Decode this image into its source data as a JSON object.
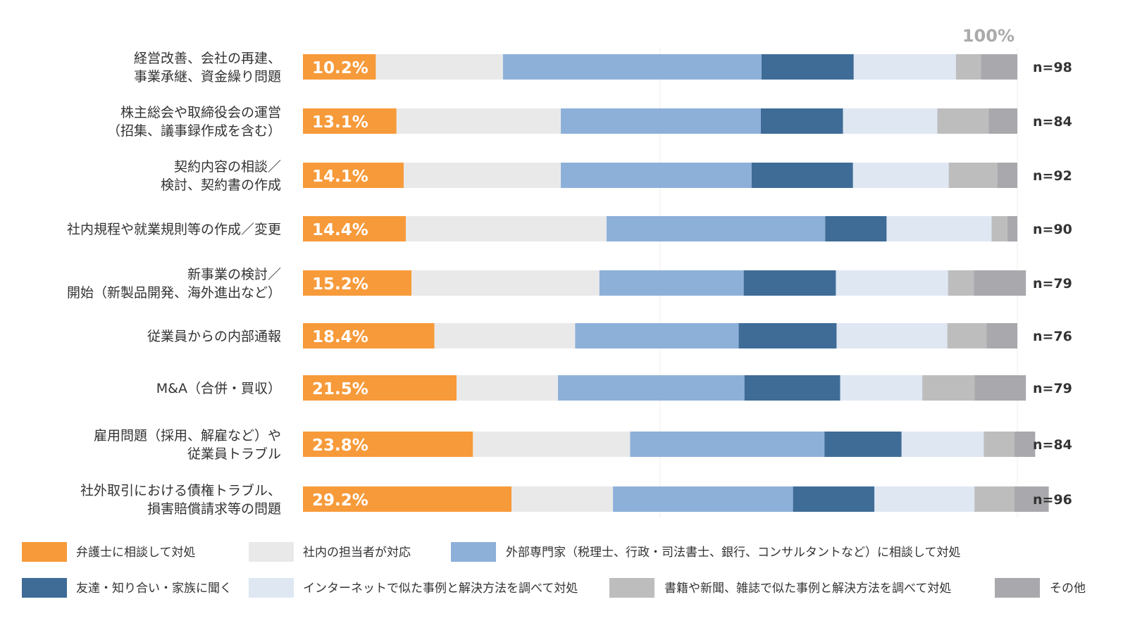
{
  "chart_data": {
    "type": "bar",
    "orientation": "horizontal",
    "stacked": true,
    "normalized_100": true,
    "xlim": [
      0,
      100
    ],
    "top_label": "100%",
    "categories": [
      [
        "経営改善、会社の再建、",
        "事業承継、資金繰り問題"
      ],
      [
        "株主総会や取締役会の運営",
        "（招集、議事録作成を含む）"
      ],
      [
        "契約内容の相談／",
        "検討、契約書の作成"
      ],
      [
        "社内規程や就業規則等の作成／変更"
      ],
      [
        "新事業の検討／",
        "開始（新製品開発、海外進出など）"
      ],
      [
        "従業員からの内部通報"
      ],
      [
        "M&A（合併・買収）"
      ],
      [
        "雇用問題（採用、解雇など）や",
        "従業員トラブル"
      ],
      [
        "社外取引における債権トラブル、",
        "損害賠償請求等の問題"
      ]
    ],
    "n_labels": [
      "n=98",
      "n=84",
      "n=92",
      "n=90",
      "n=79",
      "n=76",
      "n=79",
      "n=84",
      "n=96"
    ],
    "series": [
      {
        "name": "弁護士に相談して対処",
        "color": "#f79a3a",
        "values": [
          10.2,
          13.1,
          14.1,
          14.4,
          15.2,
          18.4,
          21.5,
          23.8,
          29.2
        ],
        "labels": [
          "10.2%",
          "13.1%",
          "14.1%",
          "14.4%",
          "15.2%",
          "18.4%",
          "21.5%",
          "23.8%",
          "29.2%"
        ]
      },
      {
        "name": "社内の担当者が対応",
        "color": "#e9e9e9",
        "values": [
          17.8,
          23.0,
          22.0,
          28.1,
          26.3,
          19.7,
          14.2,
          22.0,
          14.2
        ]
      },
      {
        "name": "外部専門家（税理士、行政・司法書士、銀行、コンサルタントなど）に相談して対処",
        "color": "#8db0d9",
        "values": [
          36.2,
          28.0,
          26.7,
          30.6,
          20.2,
          22.9,
          26.1,
          27.2,
          25.2
        ]
      },
      {
        "name": "友達・知り合い・家族に聞く",
        "color": "#3f6c97",
        "values": [
          12.9,
          11.5,
          14.2,
          8.6,
          12.9,
          13.7,
          13.4,
          10.8,
          11.4
        ]
      },
      {
        "name": "インターネットで似た事例と解決方法を調べて対処",
        "color": "#dfe7f3",
        "values": [
          14.3,
          13.2,
          13.4,
          14.7,
          15.7,
          15.5,
          11.5,
          11.5,
          14.0
        ]
      },
      {
        "name": "書籍や新聞、雑誌で似た事例と解決方法を調べて対処",
        "color": "#bdbdbd",
        "values": [
          3.5,
          7.2,
          6.8,
          2.2,
          3.6,
          5.5,
          7.3,
          4.3,
          5.6
        ]
      },
      {
        "name": "その他",
        "color": "#a8a8ad",
        "values": [
          5.1,
          4.0,
          2.8,
          1.4,
          7.3,
          4.3,
          7.2,
          2.9,
          4.8
        ]
      }
    ],
    "grid": false
  }
}
